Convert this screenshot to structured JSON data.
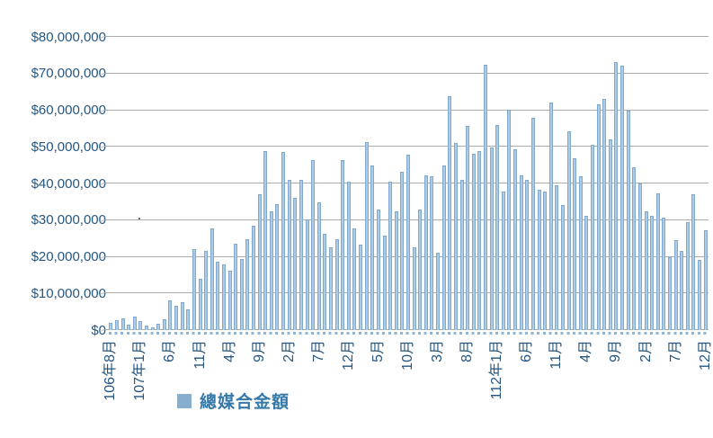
{
  "chart_data": {
    "type": "bar",
    "title": "",
    "series_name": "總媒合金額",
    "currency_symbol": "$",
    "ylim": [
      0,
      80000000
    ],
    "grid": true,
    "legend_position": "bottom",
    "y_tick_labels": [
      "$0",
      "$10,000,000",
      "$20,000,000",
      "$30,000,000",
      "$40,000,000",
      "$50,000,000",
      "$60,000,000",
      "$70,000,000",
      "$80,000,000"
    ],
    "x_tick_labels": [
      "106年8月",
      "107年1月",
      "6月",
      "11月",
      "4月",
      "9月",
      "2月",
      "7月",
      "12月",
      "5月",
      "10月",
      "3月",
      "8月",
      "112年1月",
      "6月",
      "11月",
      "4月",
      "9月",
      "2月",
      "7月",
      "12月"
    ],
    "x_tick_step": 5,
    "values": [
      2000000,
      2600000,
      3300000,
      1500000,
      3700000,
      2500000,
      1200000,
      800000,
      1800000,
      2900000,
      8000000,
      6600000,
      7600000,
      5700000,
      22000000,
      14000000,
      21500000,
      27700000,
      18600000,
      17800000,
      16100000,
      23500000,
      19400000,
      24800000,
      28500000,
      37000000,
      48900000,
      32400000,
      34400000,
      48500000,
      41100000,
      36000000,
      41100000,
      30300000,
      46400000,
      34900000,
      26200000,
      22500000,
      24900000,
      46400000,
      40600000,
      27800000,
      23300000,
      51200000,
      44800000,
      32800000,
      25800000,
      40500000,
      32500000,
      43100000,
      47900000,
      22500000,
      33000000,
      42300000,
      41900000,
      21200000,
      45000000,
      63800000,
      51000000,
      41100000,
      55700000,
      48100000,
      48900000,
      72400000,
      49700000,
      55900000,
      37700000,
      60100000,
      49300000,
      42300000,
      41100000,
      58000000,
      38200000,
      37700000,
      62100000,
      39400000,
      34000000,
      54300000,
      46800000,
      41900000,
      31100000,
      50600000,
      61700000,
      63000000,
      52000000,
      73200000,
      72200000,
      60000000,
      44400000,
      40100000,
      32300000,
      31100000,
      37400000,
      30600000,
      19900000,
      24500000,
      21600000,
      29400000,
      37000000,
      19100000,
      27300000
    ]
  },
  "legend": {
    "label": "總媒合金額",
    "swatch_color": "#85aecf"
  },
  "colors": {
    "bar_fill": "#aecbe4",
    "bar_edge": "#7fa9ce",
    "gridline": "#acacac",
    "axis_text": "#265680",
    "legend_text": "#3579a8"
  }
}
